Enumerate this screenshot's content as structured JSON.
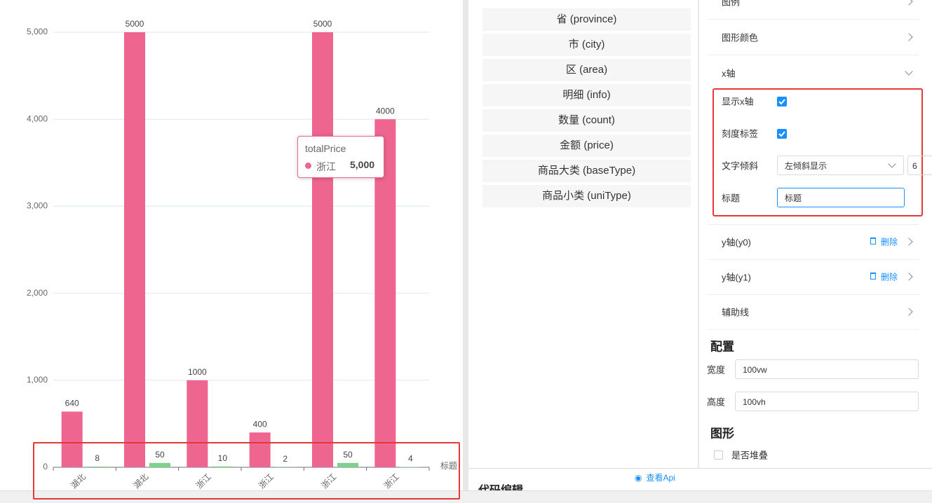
{
  "chart_data": {
    "type": "bar",
    "categories": [
      "湖北",
      "湖北",
      "浙江",
      "浙江",
      "浙江",
      "浙江"
    ],
    "series": [
      {
        "name": "totalPrice",
        "color": "#ee6590",
        "values": [
          640,
          5000,
          1000,
          400,
          5000,
          4000
        ]
      },
      {
        "color": "#7ed08e",
        "values": [
          8,
          50,
          10,
          2,
          50,
          4
        ]
      }
    ],
    "ylim": [
      0,
      5000
    ],
    "yticks": [
      0,
      {
        "value": 1000,
        "label": "1,000"
      },
      {
        "value": 2000,
        "label": "2,000"
      },
      {
        "value": 3000,
        "label": "3,000"
      },
      {
        "value": 4000,
        "label": "4,000"
      },
      {
        "value": 5000,
        "label": "5,000"
      }
    ],
    "grid": true,
    "x_label": "标题",
    "tooltip": {
      "title": "totalPrice",
      "category": "浙江",
      "value": 5000,
      "value_label": "5,000"
    }
  },
  "fields": [
    "省 (province)",
    "市 (city)",
    "区 (area)",
    "明细 (info)",
    "数量 (count)",
    "金额 (price)",
    "商品大类 (baseType)",
    "商品小类 (uniType)"
  ],
  "view_api": "查看Api",
  "code_edit": "代码编辑",
  "settings": {
    "legend": "图例",
    "shape_color": "图形颜色",
    "x_axis": "x轴",
    "show_x_axis": "显示x轴",
    "tick_labels": "刻度标签",
    "text_tilt": "文字倾斜",
    "tilt_value": "左倾斜显示",
    "tilt_angle": "6",
    "title_label": "标题",
    "title_value": "标题",
    "y0": "y轴(y0)",
    "y1": "y轴(y1)",
    "delete": "删除",
    "guide_line": "辅助线",
    "config": "配置",
    "width_label": "宽度",
    "width_value": "100vw",
    "height_label": "高度",
    "height_value": "100vh",
    "shape": "图形",
    "stacked": "是否堆叠"
  }
}
